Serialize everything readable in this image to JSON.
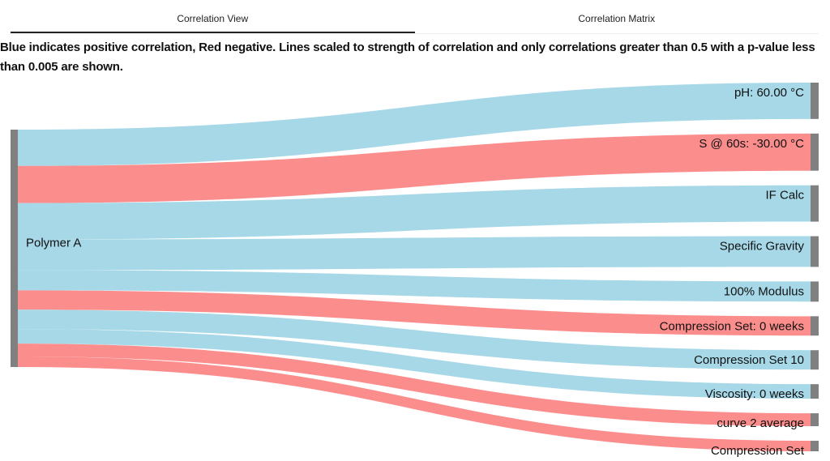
{
  "tabs": [
    {
      "label": "Correlation View",
      "active": true
    },
    {
      "label": "Correlation Matrix",
      "active": false
    }
  ],
  "description": "Blue indicates positive correlation, Red negative. Lines scaled to strength of correlation and only correlations greater than 0.5 with a p-value less than 0.005 are shown.",
  "colors": {
    "positive": "#a6d8e8",
    "negative": "#fc8d8d",
    "node": "#808080"
  },
  "chart_data": {
    "type": "sankey",
    "title": "",
    "source": "Polymer A",
    "legend": {
      "positive": "Blue",
      "negative": "Red"
    },
    "links": [
      {
        "target": "pH: 60.00 °C",
        "value": 45,
        "sign": "positive"
      },
      {
        "target": "S @ 60s: -30.00 °C",
        "value": 46,
        "sign": "negative"
      },
      {
        "target": "IF Calc",
        "value": 45,
        "sign": "positive"
      },
      {
        "target": "Specific Gravity",
        "value": 38,
        "sign": "positive"
      },
      {
        "target": "100% Modulus",
        "value": 25,
        "sign": "positive"
      },
      {
        "target": "Compression Set: 0 weeks",
        "value": 24,
        "sign": "negative"
      },
      {
        "target": "Compression Set 10",
        "value": 24,
        "sign": "positive"
      },
      {
        "target": "Viscosity: 0 weeks",
        "value": 18,
        "sign": "positive"
      },
      {
        "target": "curve 2 average",
        "value": 16,
        "sign": "negative"
      },
      {
        "target": "Compression Set",
        "value": 13,
        "sign": "negative"
      }
    ]
  }
}
